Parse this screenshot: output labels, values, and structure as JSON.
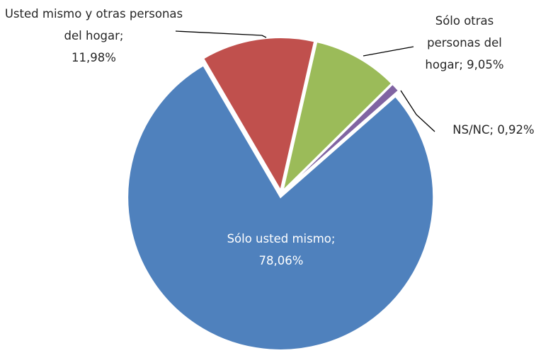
{
  "chart_data": {
    "type": "pie",
    "categories": [
      "Sólo usted mismo",
      "Usted mismo y otras personas del hogar",
      "Sólo otras personas del hogar",
      "NS/NC"
    ],
    "values": [
      78.06,
      11.98,
      9.05,
      0.92
    ],
    "value_labels": [
      "78,06%",
      "11,98%",
      "9,05%",
      "0,92%"
    ],
    "label_separator": ";",
    "colors": [
      "#4f81bd",
      "#c0504d",
      "#9bbb59",
      "#8064a2"
    ]
  }
}
